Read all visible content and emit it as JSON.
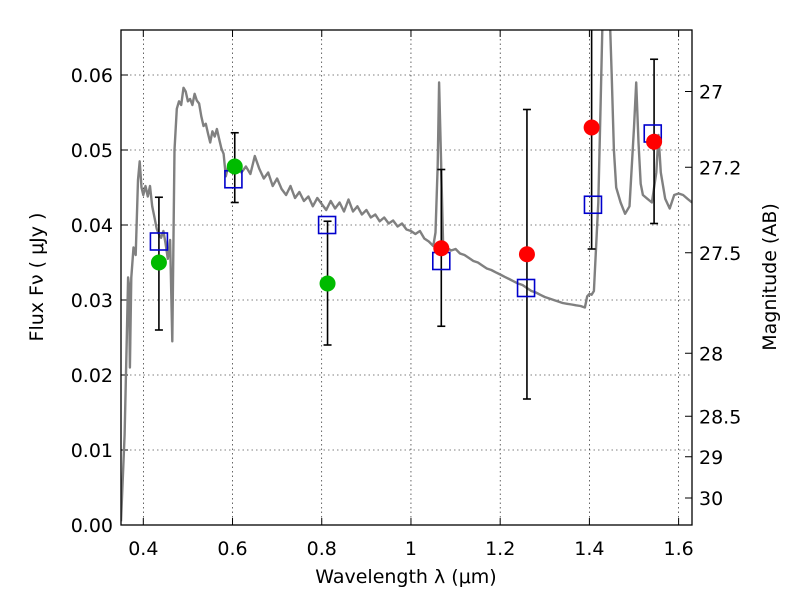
{
  "chart_data": {
    "type": "scatter",
    "xlabel": "Wavelength  λ (μm)",
    "ylabel": "Flux  Fν  ( μJy )",
    "ylabel_right": "Magnitude (AB)",
    "xlim": [
      0.35,
      1.63
    ],
    "ylim": [
      0.0,
      0.066
    ],
    "grid": true,
    "x_ticks": [
      0.4,
      0.6,
      0.8,
      1.0,
      1.2,
      1.4,
      1.6
    ],
    "x_tick_labels": [
      "0.4",
      "0.6",
      "0.8",
      "1",
      "1.2",
      "1.4",
      "1.6"
    ],
    "y_ticks": [
      0.0,
      0.01,
      0.02,
      0.03,
      0.04,
      0.05,
      0.06
    ],
    "y_tick_labels": [
      "0.00",
      "0.01",
      "0.02",
      "0.03",
      "0.04",
      "0.05",
      "0.06"
    ],
    "right_ticks": [
      {
        "flux": 0.0578,
        "label": "27"
      },
      {
        "flux": 0.0477,
        "label": "27.2"
      },
      {
        "flux": 0.0363,
        "label": "27.5"
      },
      {
        "flux": 0.0229,
        "label": "28"
      },
      {
        "flux": 0.0145,
        "label": "28.5"
      },
      {
        "flux": 0.0091,
        "label": "29"
      },
      {
        "flux": 0.0036,
        "label": "30"
      }
    ],
    "series": [
      {
        "kind": "model-spectrum",
        "color": "#808080",
        "points": [
          [
            0.35,
            0.0005
          ],
          [
            0.358,
            0.012
          ],
          [
            0.363,
            0.025
          ],
          [
            0.366,
            0.033
          ],
          [
            0.368,
            0.032
          ],
          [
            0.37,
            0.021
          ],
          [
            0.373,
            0.033
          ],
          [
            0.378,
            0.037
          ],
          [
            0.383,
            0.036
          ],
          [
            0.388,
            0.046
          ],
          [
            0.392,
            0.0485
          ],
          [
            0.396,
            0.045
          ],
          [
            0.4,
            0.044
          ],
          [
            0.405,
            0.0452
          ],
          [
            0.41,
            0.0438
          ],
          [
            0.415,
            0.0452
          ],
          [
            0.42,
            0.0425
          ],
          [
            0.425,
            0.041
          ],
          [
            0.43,
            0.0395
          ],
          [
            0.435,
            0.0388
          ],
          [
            0.44,
            0.0383
          ],
          [
            0.445,
            0.0392
          ],
          [
            0.45,
            0.0375
          ],
          [
            0.455,
            0.0355
          ],
          [
            0.46,
            0.038
          ],
          [
            0.465,
            0.0245
          ],
          [
            0.47,
            0.05
          ],
          [
            0.475,
            0.0555
          ],
          [
            0.48,
            0.0565
          ],
          [
            0.485,
            0.056
          ],
          [
            0.49,
            0.0583
          ],
          [
            0.495,
            0.0578
          ],
          [
            0.5,
            0.0565
          ],
          [
            0.505,
            0.0568
          ],
          [
            0.51,
            0.056
          ],
          [
            0.515,
            0.0575
          ],
          [
            0.52,
            0.0566
          ],
          [
            0.525,
            0.0562
          ],
          [
            0.53,
            0.0545
          ],
          [
            0.535,
            0.0532
          ],
          [
            0.54,
            0.0535
          ],
          [
            0.545,
            0.0522
          ],
          [
            0.55,
            0.051
          ],
          [
            0.555,
            0.0525
          ],
          [
            0.56,
            0.0518
          ],
          [
            0.565,
            0.0528
          ],
          [
            0.57,
            0.0515
          ],
          [
            0.575,
            0.0502
          ],
          [
            0.58,
            0.0495
          ],
          [
            0.585,
            0.0465
          ],
          [
            0.59,
            0.0478
          ],
          [
            0.595,
            0.0472
          ],
          [
            0.6,
            0.0485
          ],
          [
            0.605,
            0.0468
          ],
          [
            0.61,
            0.048
          ],
          [
            0.62,
            0.047
          ],
          [
            0.63,
            0.0478
          ],
          [
            0.64,
            0.0468
          ],
          [
            0.65,
            0.0492
          ],
          [
            0.66,
            0.0475
          ],
          [
            0.67,
            0.0462
          ],
          [
            0.68,
            0.047
          ],
          [
            0.69,
            0.0452
          ],
          [
            0.7,
            0.0462
          ],
          [
            0.71,
            0.0448
          ],
          [
            0.72,
            0.044
          ],
          [
            0.73,
            0.0452
          ],
          [
            0.74,
            0.0436
          ],
          [
            0.75,
            0.0444
          ],
          [
            0.76,
            0.0432
          ],
          [
            0.77,
            0.0438
          ],
          [
            0.78,
            0.0425
          ],
          [
            0.79,
            0.0436
          ],
          [
            0.8,
            0.0428
          ],
          [
            0.81,
            0.042
          ],
          [
            0.82,
            0.0432
          ],
          [
            0.83,
            0.0422
          ],
          [
            0.84,
            0.043
          ],
          [
            0.85,
            0.0418
          ],
          [
            0.86,
            0.0434
          ],
          [
            0.87,
            0.0418
          ],
          [
            0.88,
            0.0425
          ],
          [
            0.89,
            0.0414
          ],
          [
            0.9,
            0.042
          ],
          [
            0.91,
            0.041
          ],
          [
            0.92,
            0.0414
          ],
          [
            0.93,
            0.0405
          ],
          [
            0.94,
            0.041
          ],
          [
            0.95,
            0.0402
          ],
          [
            0.96,
            0.0406
          ],
          [
            0.97,
            0.0398
          ],
          [
            0.98,
            0.0402
          ],
          [
            0.99,
            0.0394
          ],
          [
            1.0,
            0.0392
          ],
          [
            1.01,
            0.0388
          ],
          [
            1.02,
            0.0392
          ],
          [
            1.03,
            0.0382
          ],
          [
            1.04,
            0.0378
          ],
          [
            1.05,
            0.0372
          ],
          [
            1.055,
            0.039
          ],
          [
            1.06,
            0.048
          ],
          [
            1.063,
            0.059
          ],
          [
            1.067,
            0.05
          ],
          [
            1.072,
            0.0375
          ],
          [
            1.08,
            0.037
          ],
          [
            1.09,
            0.0366
          ],
          [
            1.1,
            0.0368
          ],
          [
            1.11,
            0.0362
          ],
          [
            1.12,
            0.036
          ],
          [
            1.13,
            0.0356
          ],
          [
            1.14,
            0.0352
          ],
          [
            1.15,
            0.035
          ],
          [
            1.16,
            0.0346
          ],
          [
            1.17,
            0.0342
          ],
          [
            1.18,
            0.034
          ],
          [
            1.19,
            0.0337
          ],
          [
            1.2,
            0.0334
          ],
          [
            1.21,
            0.0331
          ],
          [
            1.22,
            0.0328
          ],
          [
            1.23,
            0.0325
          ],
          [
            1.24,
            0.0322
          ],
          [
            1.25,
            0.032
          ],
          [
            1.26,
            0.0316
          ],
          [
            1.27,
            0.0312
          ],
          [
            1.28,
            0.031
          ],
          [
            1.29,
            0.0307
          ],
          [
            1.3,
            0.0304
          ],
          [
            1.31,
            0.0302
          ],
          [
            1.32,
            0.03
          ],
          [
            1.33,
            0.0298
          ],
          [
            1.34,
            0.0296
          ],
          [
            1.35,
            0.0295
          ],
          [
            1.36,
            0.0294
          ],
          [
            1.37,
            0.0293
          ],
          [
            1.38,
            0.0292
          ],
          [
            1.39,
            0.029
          ],
          [
            1.395,
            0.0305
          ],
          [
            1.4,
            0.0308
          ],
          [
            1.405,
            0.0307
          ],
          [
            1.41,
            0.0312
          ],
          [
            1.42,
            0.043
          ],
          [
            1.425,
            0.056
          ],
          [
            1.43,
            0.07
          ],
          [
            1.445,
            0.07
          ],
          [
            1.45,
            0.06
          ],
          [
            1.455,
            0.05
          ],
          [
            1.46,
            0.045
          ],
          [
            1.47,
            0.043
          ],
          [
            1.48,
            0.0415
          ],
          [
            1.49,
            0.0425
          ],
          [
            1.5,
            0.053
          ],
          [
            1.505,
            0.059
          ],
          [
            1.51,
            0.051
          ],
          [
            1.515,
            0.0455
          ],
          [
            1.52,
            0.044
          ],
          [
            1.53,
            0.0435
          ],
          [
            1.54,
            0.043
          ],
          [
            1.55,
            0.047
          ],
          [
            1.555,
            0.052
          ],
          [
            1.56,
            0.047
          ],
          [
            1.57,
            0.0435
          ],
          [
            1.58,
            0.0422
          ],
          [
            1.59,
            0.044
          ],
          [
            1.6,
            0.0442
          ],
          [
            1.61,
            0.044
          ],
          [
            1.62,
            0.0435
          ],
          [
            1.63,
            0.043
          ]
        ]
      },
      {
        "kind": "model-photometry",
        "marker": "open-square",
        "color": "#0000cc",
        "points": [
          [
            0.435,
            0.0378
          ],
          [
            0.602,
            0.0461
          ],
          [
            0.812,
            0.04
          ],
          [
            1.068,
            0.0352
          ],
          [
            1.258,
            0.0316
          ],
          [
            1.408,
            0.0427
          ],
          [
            1.542,
            0.0522
          ]
        ]
      },
      {
        "kind": "measured-flux",
        "marker": "filled-circle",
        "color": "#00bb00",
        "points": [
          [
            0.435,
            0.035
          ],
          [
            0.605,
            0.0478
          ],
          [
            0.813,
            0.0322
          ]
        ],
        "errors": [
          [
            0.026,
            0.0437
          ],
          [
            0.043,
            0.0523
          ],
          [
            0.024,
            0.0405
          ]
        ]
      },
      {
        "kind": "measured-flux",
        "marker": "filled-circle",
        "color": "#ff0000",
        "points": [
          [
            1.068,
            0.0369
          ],
          [
            1.26,
            0.0361
          ],
          [
            1.405,
            0.053
          ],
          [
            1.545,
            0.0511
          ]
        ],
        "errors": [
          [
            0.0265,
            0.0474
          ],
          [
            0.0168,
            0.0554
          ],
          [
            0.0368,
            0.068
          ],
          [
            0.0402,
            0.0621
          ]
        ]
      }
    ]
  }
}
